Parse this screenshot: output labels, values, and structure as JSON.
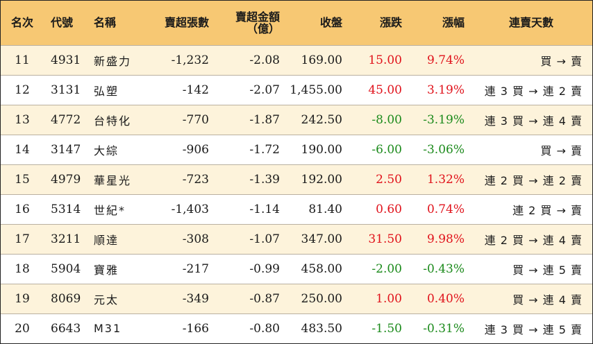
{
  "headers": {
    "rank": "名次",
    "code": "代號",
    "name": "名稱",
    "net_sell_lots": "賣超張數",
    "net_sell_amount_line1": "賣超金額",
    "net_sell_amount_line2": "（億）",
    "close": "收盤",
    "change": "漲跌",
    "change_pct": "漲幅",
    "streak": "連賣天數"
  },
  "rows": [
    {
      "rank": "11",
      "code": "4931",
      "name": "新盛力",
      "lots": "-1,232",
      "amount": "-2.08",
      "close": "169.00",
      "change": "15.00",
      "pct": "9.74%",
      "dir": "up",
      "streak": "買 → 賣"
    },
    {
      "rank": "12",
      "code": "3131",
      "name": "弘塑",
      "lots": "-142",
      "amount": "-2.07",
      "close": "1,455.00",
      "change": "45.00",
      "pct": "3.19%",
      "dir": "up",
      "streak": "連 3 買 → 連 2 賣"
    },
    {
      "rank": "13",
      "code": "4772",
      "name": "台特化",
      "lots": "-770",
      "amount": "-1.87",
      "close": "242.50",
      "change": "-8.00",
      "pct": "-3.19%",
      "dir": "down",
      "streak": "連 3 買 → 連 4 賣"
    },
    {
      "rank": "14",
      "code": "3147",
      "name": "大綜",
      "lots": "-906",
      "amount": "-1.72",
      "close": "190.00",
      "change": "-6.00",
      "pct": "-3.06%",
      "dir": "down",
      "streak": "買 → 賣"
    },
    {
      "rank": "15",
      "code": "4979",
      "name": "華星光",
      "lots": "-723",
      "amount": "-1.39",
      "close": "192.00",
      "change": "2.50",
      "pct": "1.32%",
      "dir": "up",
      "streak": "連 2 買 → 連 2 賣"
    },
    {
      "rank": "16",
      "code": "5314",
      "name": "世紀*",
      "lots": "-1,403",
      "amount": "-1.14",
      "close": "81.40",
      "change": "0.60",
      "pct": "0.74%",
      "dir": "up",
      "streak": "連 2 買 → 賣"
    },
    {
      "rank": "17",
      "code": "3211",
      "name": "順達",
      "lots": "-308",
      "amount": "-1.07",
      "close": "347.00",
      "change": "31.50",
      "pct": "9.98%",
      "dir": "up",
      "streak": "連 2 買 → 連 4 賣"
    },
    {
      "rank": "18",
      "code": "5904",
      "name": "寶雅",
      "lots": "-217",
      "amount": "-0.99",
      "close": "458.00",
      "change": "-2.00",
      "pct": "-0.43%",
      "dir": "down",
      "streak": "買 → 連 5 賣"
    },
    {
      "rank": "19",
      "code": "8069",
      "name": "元太",
      "lots": "-349",
      "amount": "-0.87",
      "close": "250.00",
      "change": "1.00",
      "pct": "0.40%",
      "dir": "up",
      "streak": "買 → 連 4 賣"
    },
    {
      "rank": "20",
      "code": "6643",
      "name": "M31",
      "lots": "-166",
      "amount": "-0.80",
      "close": "483.50",
      "change": "-1.50",
      "pct": "-0.31%",
      "dir": "down",
      "streak": "連 3 買 → 連 5 賣"
    }
  ],
  "colors": {
    "header_bg": "#f7c873",
    "odd_row_bg": "#fdf3db",
    "up": "#e0121b",
    "down": "#1b8a1b"
  }
}
